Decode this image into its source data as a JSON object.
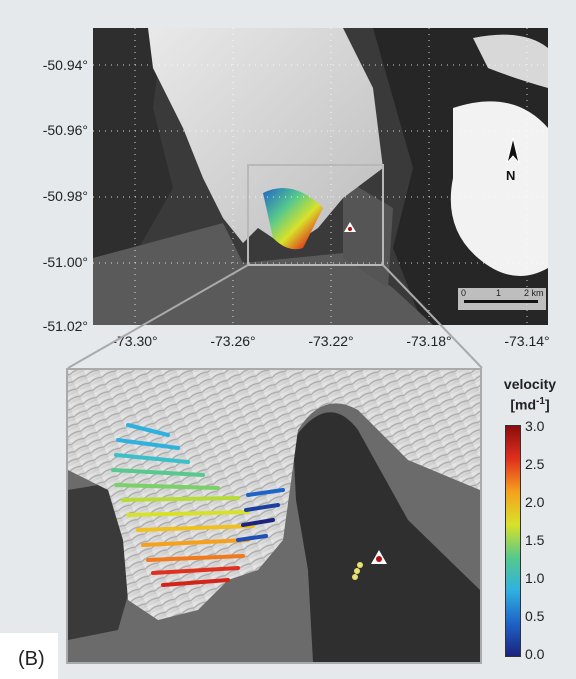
{
  "map": {
    "lat_labels": [
      "-50.94°",
      "-50.96°",
      "-50.98°",
      "-51.00°",
      "-51.02°"
    ],
    "lon_labels": [
      "-73.30°",
      "-73.26°",
      "-73.22°",
      "-73.18°",
      "-73.14°"
    ],
    "north_label": "N",
    "scale_bar": {
      "labels": [
        "0",
        "1",
        "2 km"
      ]
    }
  },
  "colorbar": {
    "title_line1": "velocity",
    "title_line2_base": "[md",
    "title_line2_sup": "-1",
    "title_line2_end": "]",
    "ticks": [
      "3.0",
      "2.5",
      "2.0",
      "1.5",
      "1.0",
      "0.5",
      "0.0"
    ],
    "range": [
      0.0,
      3.0
    ],
    "colors": [
      "#1a237e",
      "#1e63c8",
      "#2fb1e0",
      "#57c98c",
      "#d8e12a",
      "#f5a11d",
      "#e0301e",
      "#8b0c0c"
    ]
  },
  "panel_label": "(B)"
}
